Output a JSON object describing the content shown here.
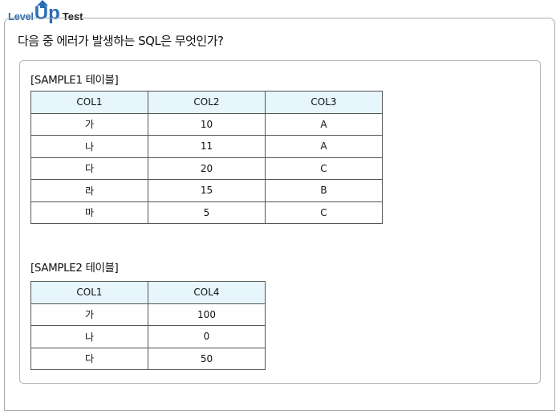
{
  "logo": {
    "level": "Level",
    "up": "Up",
    "test": "Test"
  },
  "question": "다음 중 에러가 발생하는 SQL은 무엇인가?",
  "tables": [
    {
      "title": "[SAMPLE1 테이블]",
      "headers": [
        "COL1",
        "COL2",
        "COL3"
      ],
      "rows": [
        [
          "가",
          "10",
          "A"
        ],
        [
          "나",
          "11",
          "A"
        ],
        [
          "다",
          "20",
          "C"
        ],
        [
          "라",
          "15",
          "B"
        ],
        [
          "마",
          "5",
          "C"
        ]
      ]
    },
    {
      "title": "[SAMPLE2 테이블]",
      "headers": [
        "COL1",
        "COL4"
      ],
      "rows": [
        [
          "가",
          "100"
        ],
        [
          "나",
          "0"
        ],
        [
          "다",
          "50"
        ]
      ]
    }
  ]
}
